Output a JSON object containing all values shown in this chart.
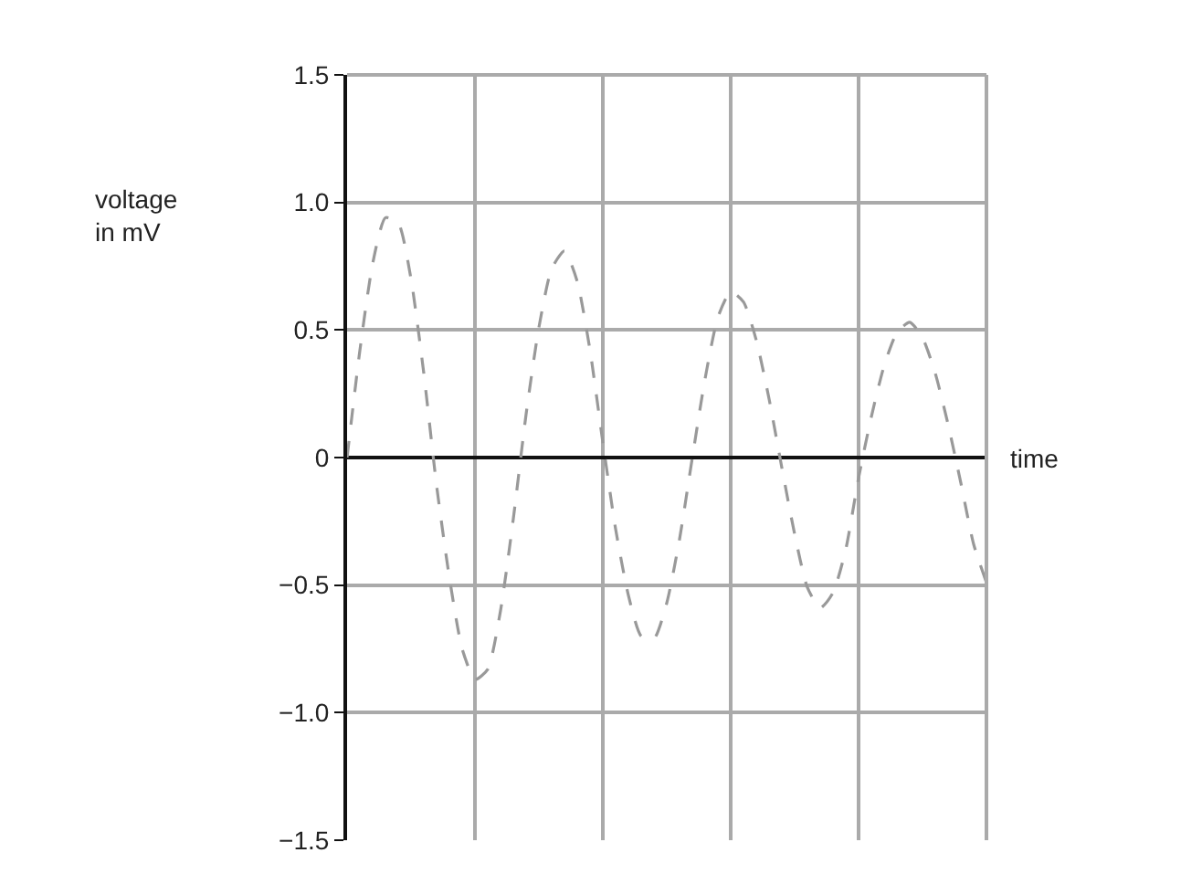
{
  "chart_data": {
    "type": "line",
    "xlabel": "time",
    "ylabel": "voltage\nin mV",
    "categories": [
      null,
      null,
      null,
      null,
      null,
      null,
      null,
      null,
      null,
      null,
      null,
      null,
      null,
      null,
      null,
      null,
      null,
      null,
      null,
      null,
      null,
      null,
      null,
      null,
      null,
      null,
      null,
      null,
      null,
      null,
      null,
      null,
      null,
      null,
      null,
      null,
      null,
      null,
      null,
      null,
      null,
      null,
      null,
      null,
      null,
      null,
      null,
      null,
      null,
      null,
      null
    ],
    "series": [
      {
        "color": "#999999",
        "values": [
          0,
          0.42,
          0.76,
          0.94,
          0.92,
          0.7,
          0.33,
          -0.11,
          -0.47,
          -0.75,
          -0.87,
          -0.83,
          -0.6,
          -0.24,
          0.17,
          0.51,
          0.74,
          0.81,
          0.69,
          0.42,
          0.06,
          -0.28,
          -0.54,
          -0.7,
          -0.71,
          -0.57,
          -0.32,
          0,
          0.31,
          0.55,
          0.65,
          0.61,
          0.46,
          0.23,
          -0.04,
          -0.3,
          -0.51,
          -0.59,
          -0.53,
          -0.36,
          -0.08,
          0.16,
          0.36,
          0.49,
          0.53,
          0.47,
          0.33,
          0.13,
          -0.1,
          -0.34,
          -0.49
        ]
      }
    ],
    "ylim": [
      -1.5,
      1.5
    ],
    "yticks": [
      {
        "value": -1.5,
        "label": "−1.5"
      },
      {
        "value": -1.0,
        "label": "−1.0"
      },
      {
        "value": -0.5,
        "label": "−0.5"
      },
      0,
      0.5,
      {
        "value": 1.0,
        "label": "1.0"
      },
      1.5
    ],
    "grid": true,
    "marker": "none",
    "line_style": "dashed"
  }
}
